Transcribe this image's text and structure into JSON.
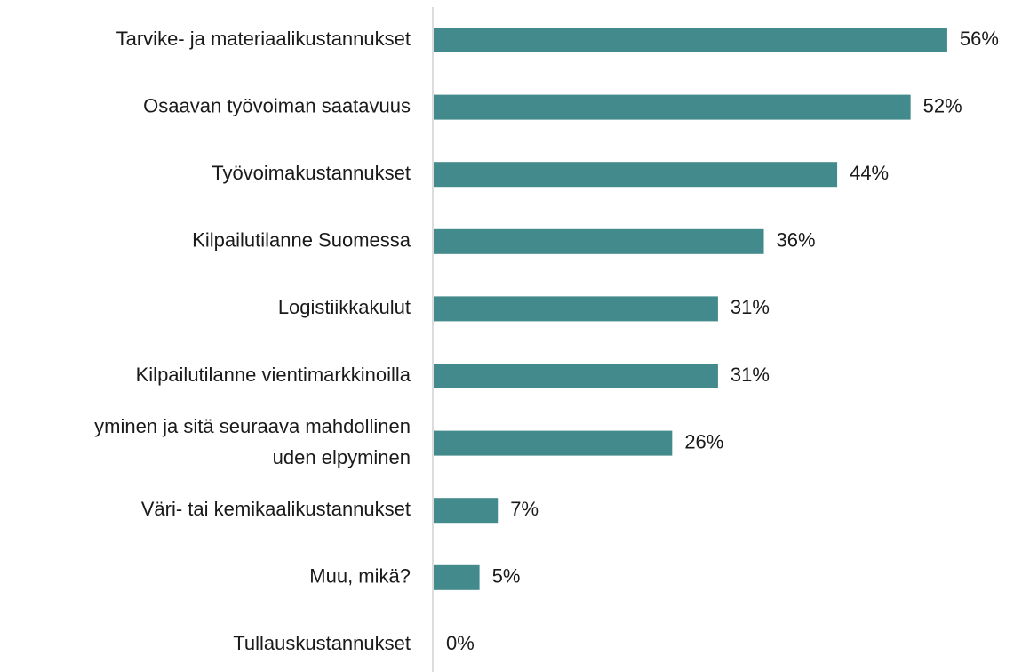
{
  "chart_data": {
    "type": "bar",
    "orientation": "horizontal",
    "categories": [
      "Tarvike- ja materiaalikustannukset",
      "Osaavan työvoiman saatavuus",
      "Työvoimakustannukset",
      "Kilpailutilanne Suomessa",
      "Logistiikkakulut",
      "Kilpailutilanne vientimarkkinoilla",
      "yminen ja sitä seuraava mahdollinen\nuden elpyminen",
      "Väri- tai kemikaalikustannukset",
      "Muu, mikä?",
      "Tullauskustannukset"
    ],
    "values": [
      56,
      52,
      44,
      36,
      31,
      31,
      26,
      7,
      5,
      0
    ],
    "value_labels": [
      "56%",
      "52%",
      "44%",
      "36%",
      "31%",
      "31%",
      "26%",
      "7%",
      "5%",
      "0%"
    ],
    "color": "#438a8c"
  }
}
